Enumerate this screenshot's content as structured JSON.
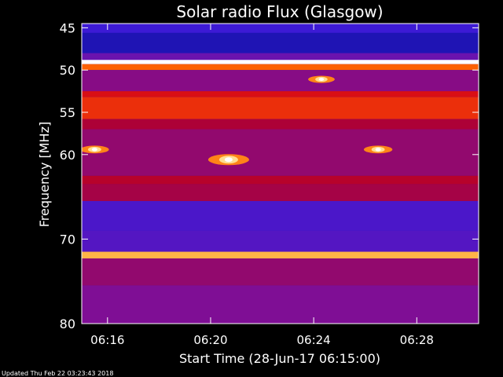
{
  "title": "Solar radio Flux (Glasgow)",
  "footer": "Updated Thu Feb 22 03:23:43 2018",
  "chart_data": {
    "type": "heatmap",
    "title": "Solar radio Flux (Glasgow)",
    "xlabel": "Start Time (28-Jun-17 06:15:00)",
    "ylabel": "Frequency [MHz]",
    "x_ticks": [
      {
        "label": "06:16",
        "minutes": 1
      },
      {
        "label": "06:20",
        "minutes": 5
      },
      {
        "label": "06:24",
        "minutes": 9
      },
      {
        "label": "06:28",
        "minutes": 13
      }
    ],
    "y_ticks": [
      {
        "label": "45",
        "value": 45
      },
      {
        "label": "50",
        "value": 50
      },
      {
        "label": "55",
        "value": 55
      },
      {
        "label": "60",
        "value": 60
      },
      {
        "label": "70",
        "value": 70
      },
      {
        "label": "80",
        "value": 80
      }
    ],
    "xlim_minutes": [
      0,
      15.4
    ],
    "ylim_mhz": [
      44.5,
      80
    ],
    "colormap": [
      "#1010a0",
      "#3a1ad8",
      "#7a10a0",
      "#b00030",
      "#e01010",
      "#ff6a00",
      "#ffd060",
      "#ffffff"
    ],
    "bands": [
      {
        "from": 44.5,
        "to": 45.6,
        "level": 0.15
      },
      {
        "from": 45.6,
        "to": 48.0,
        "level": 0.05
      },
      {
        "from": 48.0,
        "to": 48.8,
        "level": 0.25
      },
      {
        "from": 48.8,
        "to": 49.3,
        "level": 1.0
      },
      {
        "from": 49.3,
        "to": 50.0,
        "level": 0.7
      },
      {
        "from": 50.0,
        "to": 52.5,
        "level": 0.32
      },
      {
        "from": 52.5,
        "to": 53.2,
        "level": 0.55
      },
      {
        "from": 53.2,
        "to": 55.8,
        "level": 0.62
      },
      {
        "from": 55.8,
        "to": 57.0,
        "level": 0.42
      },
      {
        "from": 57.0,
        "to": 62.5,
        "level": 0.35
      },
      {
        "from": 62.5,
        "to": 63.5,
        "level": 0.45
      },
      {
        "from": 63.5,
        "to": 65.5,
        "level": 0.4
      },
      {
        "from": 65.5,
        "to": 69.0,
        "level": 0.18
      },
      {
        "from": 69.0,
        "to": 71.5,
        "level": 0.2
      },
      {
        "from": 71.5,
        "to": 72.3,
        "level": 0.82
      },
      {
        "from": 72.3,
        "to": 75.5,
        "level": 0.35
      },
      {
        "from": 75.5,
        "to": 80.0,
        "level": 0.3
      }
    ],
    "bursts": [
      {
        "minutes": 5.7,
        "mhz": 60.6,
        "level": 1.0
      },
      {
        "minutes": 0.5,
        "mhz": 59.4,
        "level": 0.7
      },
      {
        "minutes": 11.5,
        "mhz": 59.4,
        "level": 0.7
      },
      {
        "minutes": 9.3,
        "mhz": 51.1,
        "level": 0.65
      }
    ]
  }
}
